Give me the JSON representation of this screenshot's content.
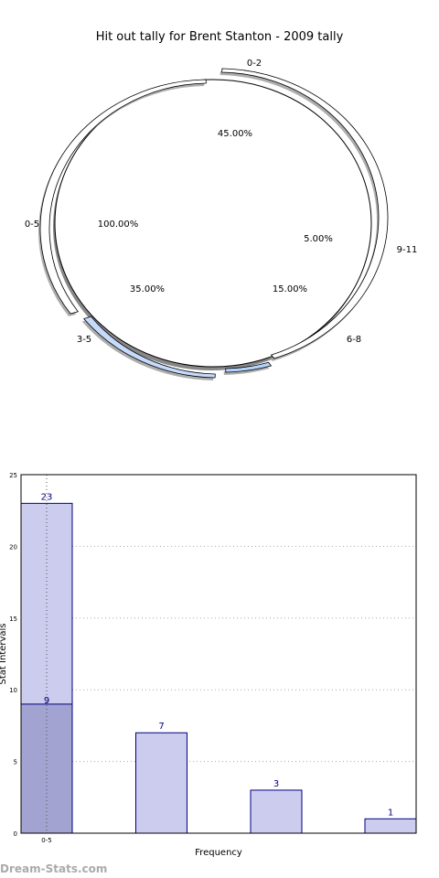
{
  "chart_data": [
    {
      "type": "pie",
      "title": "Hit out tally for Brent Stanton - 2009 tally",
      "inner": {
        "categories": [
          "0-5"
        ],
        "values": [
          100.0
        ],
        "percent_labels": [
          "100.00%"
        ]
      },
      "outer": {
        "categories": [
          "0-2",
          "9-11",
          "6-8",
          "3-5"
        ],
        "values": [
          45.0,
          5.0,
          15.0,
          35.0
        ],
        "percent_labels": [
          "45.00%",
          "5.00%",
          "15.00%",
          "35.00%"
        ],
        "colors": [
          "#ffffff",
          "#b3d4fc",
          "#c6dafc",
          "#ffffff"
        ]
      }
    },
    {
      "type": "bar",
      "xlabel": "Frequency",
      "ylabel": "Stat Intervals",
      "ylim": [
        0,
        25
      ],
      "yticks": [
        "0",
        "5",
        "10",
        "15",
        "20",
        "25"
      ],
      "x_tick_labels": [
        "0-5"
      ],
      "grid": true,
      "bars": [
        {
          "value": 23,
          "label": "23",
          "color": "#ccccee"
        },
        {
          "value": 7,
          "label": "7",
          "color": "#ccccee"
        },
        {
          "value": 3,
          "label": "3",
          "color": "#ccccee"
        },
        {
          "value": 1,
          "label": "1",
          "color": "#ccccee"
        }
      ],
      "overlay": {
        "value": 9,
        "label": "9",
        "color": "#a3a3d1"
      }
    }
  ],
  "watermark": "Dream-Stats.com"
}
